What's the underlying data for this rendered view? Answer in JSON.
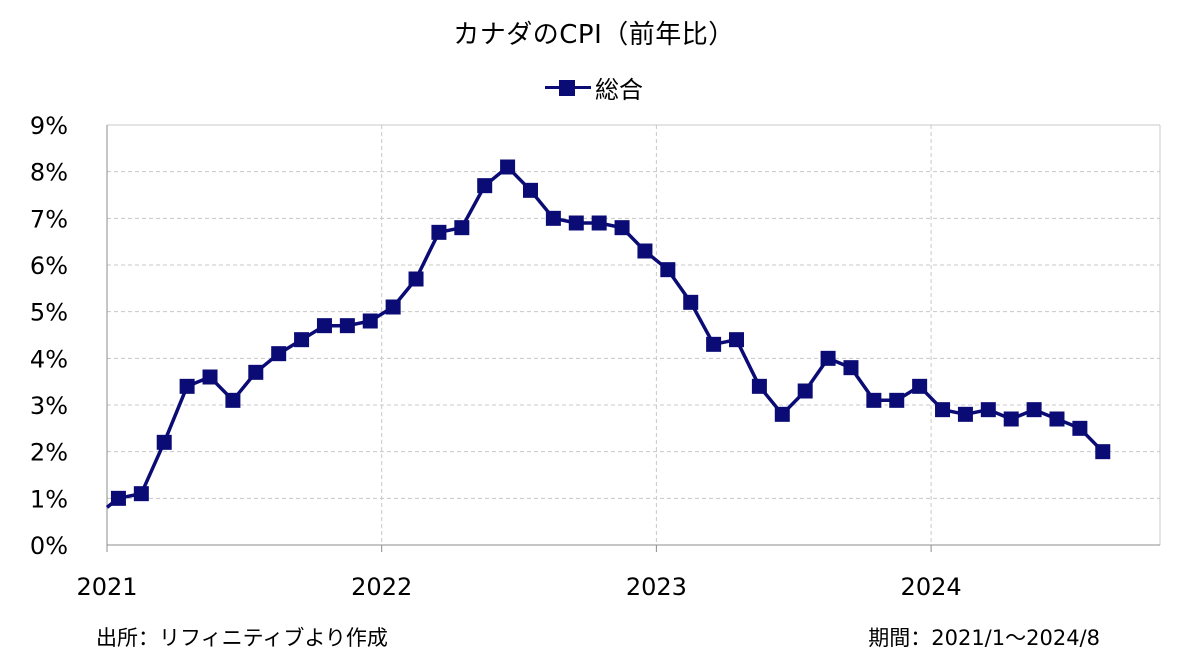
{
  "chart_data": {
    "type": "line",
    "title": "カナダのCPI（前年比）",
    "series": [
      {
        "name": "総合",
        "color": "#0b0b75",
        "values": [
          1.0,
          1.1,
          2.2,
          3.4,
          3.6,
          3.1,
          3.7,
          4.1,
          4.4,
          4.7,
          4.7,
          4.8,
          5.1,
          5.7,
          6.7,
          6.8,
          7.7,
          8.1,
          7.6,
          7.0,
          6.9,
          6.9,
          6.8,
          6.3,
          5.9,
          5.2,
          4.3,
          4.4,
          3.4,
          2.8,
          3.3,
          4.0,
          3.8,
          3.1,
          3.1,
          3.4,
          2.9,
          2.8,
          2.9,
          2.7,
          2.9,
          2.7,
          2.5,
          2.0
        ]
      }
    ],
    "start": "2021-01",
    "x_tick_labels": [
      "2021",
      "2022",
      "2023",
      "2024"
    ],
    "y_tick_labels": [
      "0%",
      "1%",
      "2%",
      "3%",
      "4%",
      "5%",
      "6%",
      "7%",
      "8%",
      "9%"
    ],
    "ylim": [
      0,
      9
    ],
    "grid": true,
    "legend_position": "top-center"
  },
  "footer": {
    "source": "出所：リフィニティブより作成",
    "period": "期間：2021/1～2024/8"
  }
}
